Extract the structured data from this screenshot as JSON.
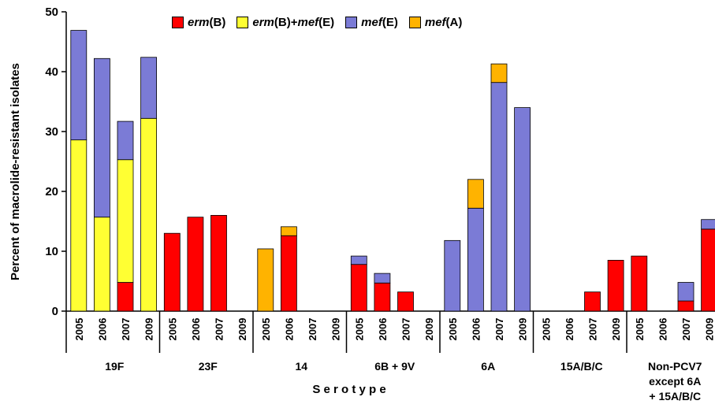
{
  "chart_data": {
    "type": "bar",
    "stacked": true,
    "ylabel": "Percent of macrolide-resistant isolates",
    "xlabel": "S e r o t y p e",
    "ylim": [
      0,
      50
    ],
    "yticks": [
      0,
      10,
      20,
      30,
      40,
      50
    ],
    "grid": false,
    "legend_position": "top",
    "groups": [
      {
        "label": "19F",
        "years": [
          "2005",
          "2006",
          "2007",
          "2009"
        ]
      },
      {
        "label": "23F",
        "years": [
          "2005",
          "2006",
          "2007",
          "2009"
        ]
      },
      {
        "label": "14",
        "years": [
          "2005",
          "2006",
          "2007",
          "2009"
        ]
      },
      {
        "label": "6B + 9V",
        "years": [
          "2005",
          "2006",
          "2007",
          "2009"
        ]
      },
      {
        "label": "6A",
        "years": [
          "2005",
          "2006",
          "2007",
          "2009"
        ]
      },
      {
        "label": "15A/B/C",
        "years": [
          "2005",
          "2006",
          "2007",
          "2009"
        ]
      },
      {
        "label": "Non-PCV7 except 6A + 15A/B/C",
        "label_lines": [
          "Non-PCV7",
          "except 6A",
          "+ 15A/B/C"
        ],
        "years": [
          "2005",
          "2006",
          "2007",
          "2009"
        ]
      }
    ],
    "series": [
      {
        "name": "erm(B)",
        "parts": [
          {
            "t": "erm",
            "i": true
          },
          {
            "t": "(B)",
            "i": false
          }
        ],
        "color": "#ff0000",
        "values": [
          0,
          0,
          4.8,
          0,
          13.0,
          15.7,
          16.0,
          0,
          0,
          12.6,
          0,
          0,
          7.8,
          4.7,
          3.2,
          0,
          0,
          0,
          0,
          0,
          0,
          0,
          3.2,
          8.5,
          9.2,
          0,
          1.7,
          13.7
        ]
      },
      {
        "name": "erm(B)+mef(E)",
        "parts": [
          {
            "t": "erm",
            "i": true
          },
          {
            "t": "(B)+",
            "i": false
          },
          {
            "t": "mef",
            "i": true
          },
          {
            "t": "(E)",
            "i": false
          }
        ],
        "color": "#ffff33",
        "values": [
          28.6,
          15.7,
          20.5,
          32.2,
          0,
          0,
          0,
          0,
          0,
          0,
          0,
          0,
          0,
          0,
          0,
          0,
          0,
          0,
          0,
          0,
          0,
          0,
          0,
          0,
          0,
          0,
          0,
          0
        ]
      },
      {
        "name": "mef(E)",
        "parts": [
          {
            "t": "mef",
            "i": true
          },
          {
            "t": "(E)",
            "i": false
          }
        ],
        "color": "#7b7bd6",
        "values": [
          18.3,
          26.5,
          6.4,
          10.2,
          0,
          0,
          0,
          0,
          0,
          0,
          0,
          0,
          1.4,
          1.6,
          0,
          0,
          11.8,
          17.2,
          38.2,
          34.0,
          0,
          0,
          0,
          0,
          0,
          0,
          3.1,
          1.6
        ]
      },
      {
        "name": "mef(A)",
        "parts": [
          {
            "t": "mef",
            "i": true
          },
          {
            "t": "(A)",
            "i": false
          }
        ],
        "color": "#ffb300",
        "values": [
          0,
          0,
          0,
          0,
          0,
          0,
          0,
          0,
          10.4,
          1.5,
          0,
          0,
          0,
          0,
          0,
          0,
          0,
          4.8,
          3.1,
          0,
          0,
          0,
          0,
          0,
          0,
          0,
          0,
          0
        ]
      }
    ]
  }
}
